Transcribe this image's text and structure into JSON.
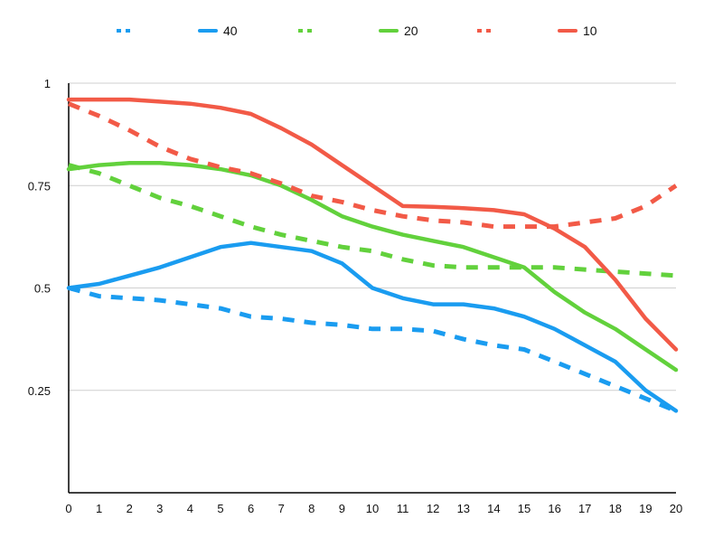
{
  "chart_data": {
    "type": "line",
    "x": [
      0,
      1,
      2,
      3,
      4,
      5,
      6,
      7,
      8,
      9,
      10,
      11,
      12,
      13,
      14,
      15,
      16,
      17,
      18,
      19,
      20
    ],
    "xlim": [
      0,
      20
    ],
    "ylim": [
      0,
      1
    ],
    "yticks": [
      0.25,
      0.5,
      0.75,
      1
    ],
    "ytick_labels": [
      "0.25",
      "0.5",
      "0.75",
      "1"
    ],
    "grid": "horizontal",
    "legend_position": "top",
    "series": [
      {
        "name": "",
        "color": "#1a9cf0",
        "dashed": true,
        "values": [
          0.5,
          0.48,
          0.475,
          0.47,
          0.46,
          0.45,
          0.43,
          0.425,
          0.415,
          0.41,
          0.4,
          0.4,
          0.395,
          0.375,
          0.36,
          0.35,
          0.32,
          0.29,
          0.26,
          0.23,
          0.2
        ]
      },
      {
        "name": "40",
        "color": "#1a9cf0",
        "dashed": false,
        "values": [
          0.5,
          0.51,
          0.53,
          0.55,
          0.575,
          0.6,
          0.61,
          0.6,
          0.59,
          0.56,
          0.5,
          0.475,
          0.46,
          0.46,
          0.45,
          0.43,
          0.4,
          0.36,
          0.32,
          0.25,
          0.2
        ]
      },
      {
        "name": "",
        "color": "#62d13c",
        "dashed": true,
        "values": [
          0.8,
          0.78,
          0.75,
          0.72,
          0.7,
          0.675,
          0.65,
          0.63,
          0.615,
          0.6,
          0.59,
          0.57,
          0.555,
          0.55,
          0.55,
          0.55,
          0.55,
          0.545,
          0.54,
          0.535,
          0.53
        ]
      },
      {
        "name": "20",
        "color": "#62d13c",
        "dashed": false,
        "values": [
          0.79,
          0.8,
          0.805,
          0.805,
          0.8,
          0.79,
          0.775,
          0.75,
          0.715,
          0.675,
          0.65,
          0.63,
          0.615,
          0.6,
          0.575,
          0.55,
          0.49,
          0.44,
          0.4,
          0.35,
          0.3
        ]
      },
      {
        "name": "",
        "color": "#f25a47",
        "dashed": true,
        "values": [
          0.95,
          0.92,
          0.885,
          0.845,
          0.815,
          0.795,
          0.78,
          0.755,
          0.725,
          0.71,
          0.69,
          0.675,
          0.665,
          0.66,
          0.65,
          0.65,
          0.65,
          0.66,
          0.67,
          0.7,
          0.75
        ]
      },
      {
        "name": "10",
        "color": "#f25a47",
        "dashed": false,
        "values": [
          0.96,
          0.96,
          0.96,
          0.955,
          0.95,
          0.94,
          0.925,
          0.89,
          0.85,
          0.8,
          0.75,
          0.7,
          0.698,
          0.695,
          0.69,
          0.68,
          0.645,
          0.6,
          0.52,
          0.425,
          0.35
        ]
      }
    ]
  }
}
